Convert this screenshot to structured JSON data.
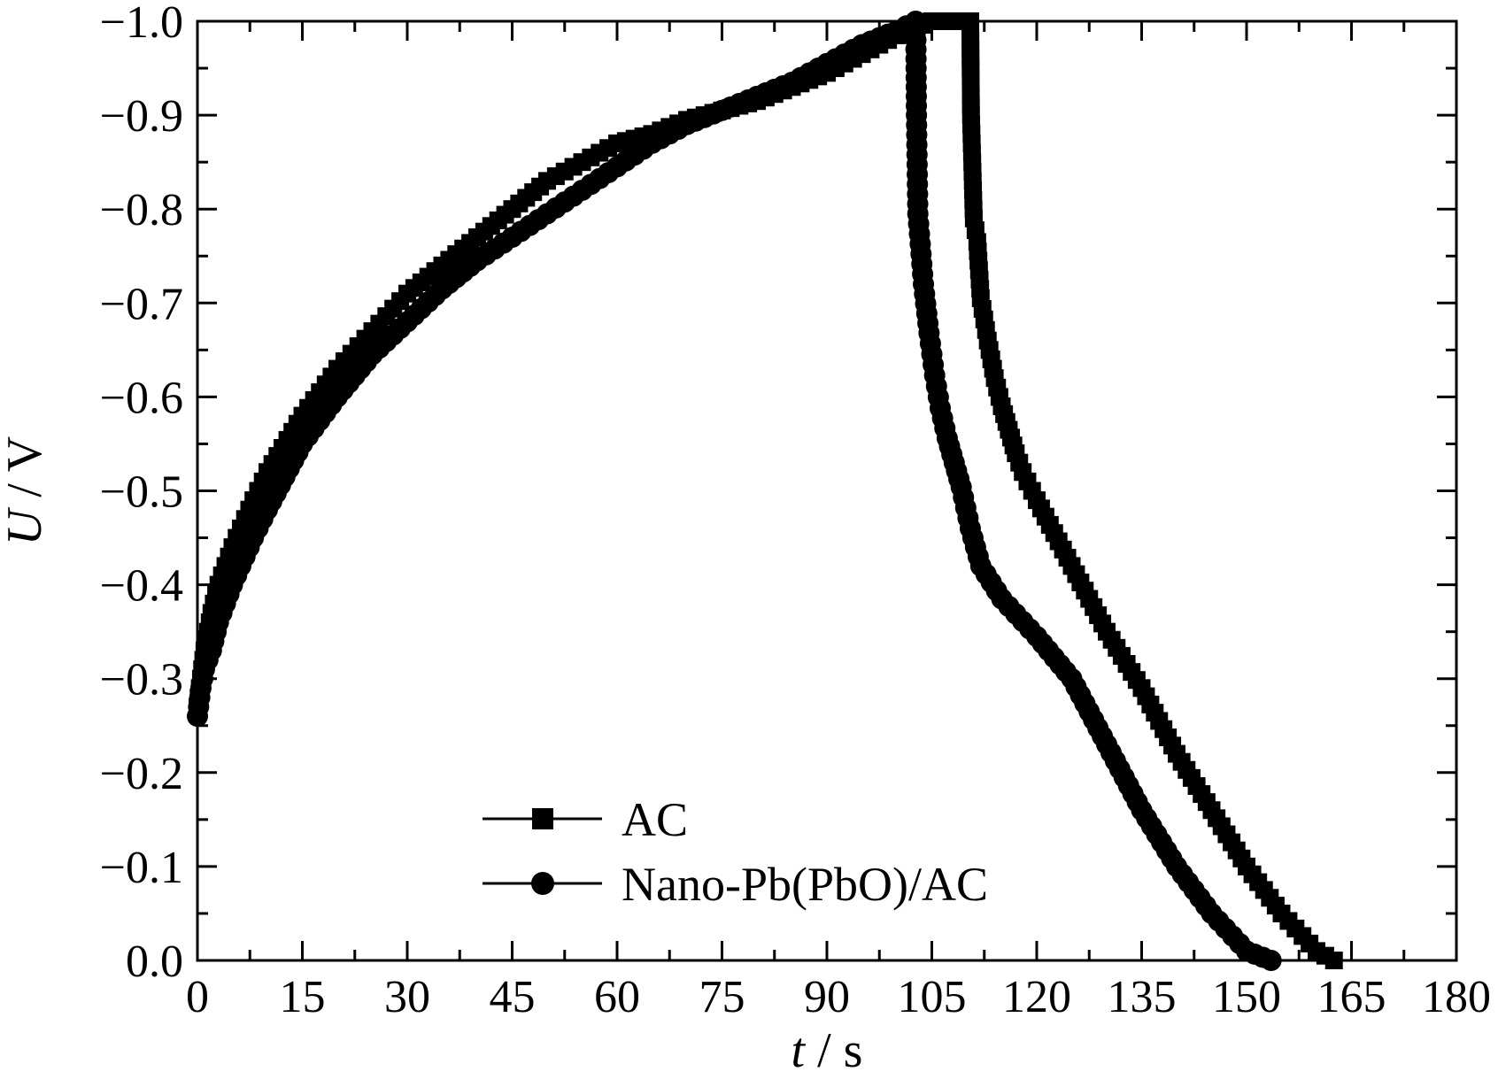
{
  "chart_data": {
    "type": "line",
    "title": "",
    "xlabel": {
      "italic": "t",
      "rest": " / s"
    },
    "ylabel": {
      "italic": "U",
      "rest": " / V"
    },
    "xlim": [
      0,
      180
    ],
    "ylim": [
      0.0,
      -1.0
    ],
    "y_axis_inverted": true,
    "x_ticks": [
      0,
      15,
      30,
      45,
      60,
      75,
      90,
      105,
      120,
      135,
      150,
      165,
      180
    ],
    "x_tick_labels": [
      "0",
      "15",
      "30",
      "45",
      "60",
      "75",
      "90",
      "105",
      "120",
      "135",
      "150",
      "165",
      "180"
    ],
    "y_ticks": [
      0.0,
      -0.1,
      -0.2,
      -0.3,
      -0.4,
      -0.5,
      -0.6,
      -0.7,
      -0.8,
      -0.9,
      -1.0
    ],
    "y_tick_labels": [
      "0.0",
      "−0.1",
      "−0.2",
      "−0.3",
      "−0.4",
      "−0.5",
      "−0.6",
      "−0.7",
      "−0.8",
      "−0.9",
      "−1.0"
    ],
    "grid": false,
    "legend_position": "bottom-left",
    "series": [
      {
        "name": "AC",
        "marker": "square",
        "color": "#000000",
        "x": [
          0,
          0.5,
          1,
          2,
          3,
          5,
          8,
          10,
          15,
          20,
          25,
          30,
          35,
          40,
          45,
          50,
          55,
          60,
          65,
          70,
          75,
          80,
          85,
          90,
          95,
          100,
          105,
          108,
          110.5,
          110.6,
          111,
          111.5,
          112,
          113,
          114,
          115,
          116,
          117,
          118,
          120,
          125,
          130,
          135,
          140,
          145,
          150,
          155,
          160,
          162.5
        ],
        "y": [
          -0.27,
          -0.3,
          -0.33,
          -0.37,
          -0.4,
          -0.44,
          -0.49,
          -0.52,
          -0.58,
          -0.63,
          -0.67,
          -0.71,
          -0.74,
          -0.77,
          -0.8,
          -0.83,
          -0.85,
          -0.87,
          -0.88,
          -0.895,
          -0.905,
          -0.915,
          -0.93,
          -0.945,
          -0.965,
          -0.985,
          -1.0,
          -1.0,
          -1.0,
          -0.9,
          -0.79,
          -0.765,
          -0.705,
          -0.66,
          -0.62,
          -0.59,
          -0.565,
          -0.54,
          -0.52,
          -0.49,
          -0.42,
          -0.35,
          -0.29,
          -0.22,
          -0.16,
          -0.1,
          -0.05,
          -0.01,
          0.0
        ]
      },
      {
        "name": "Nano-Pb(PbO)/AC",
        "marker": "circle",
        "color": "#000000",
        "x": [
          0,
          0.5,
          1,
          2,
          3,
          5,
          8,
          10,
          15,
          20,
          25,
          30,
          35,
          40,
          45,
          50,
          55,
          60,
          65,
          70,
          75,
          80,
          85,
          90,
          95,
          100,
          102.7,
          102.8,
          103,
          103.8,
          104.6,
          105.4,
          106.2,
          107.2,
          108.2,
          109.2,
          110.5,
          112,
          115,
          120,
          125,
          130,
          135,
          140,
          145,
          150,
          153.5
        ],
        "y": [
          -0.26,
          -0.29,
          -0.31,
          -0.33,
          -0.36,
          -0.4,
          -0.45,
          -0.48,
          -0.55,
          -0.6,
          -0.645,
          -0.68,
          -0.715,
          -0.745,
          -0.77,
          -0.795,
          -0.82,
          -0.845,
          -0.87,
          -0.89,
          -0.905,
          -0.92,
          -0.935,
          -0.955,
          -0.975,
          -0.99,
          -1.0,
          -0.9,
          -0.795,
          -0.72,
          -0.668,
          -0.623,
          -0.588,
          -0.556,
          -0.53,
          -0.504,
          -0.46,
          -0.42,
          -0.385,
          -0.345,
          -0.3,
          -0.23,
          -0.16,
          -0.1,
          -0.05,
          -0.01,
          0.0
        ]
      }
    ]
  }
}
